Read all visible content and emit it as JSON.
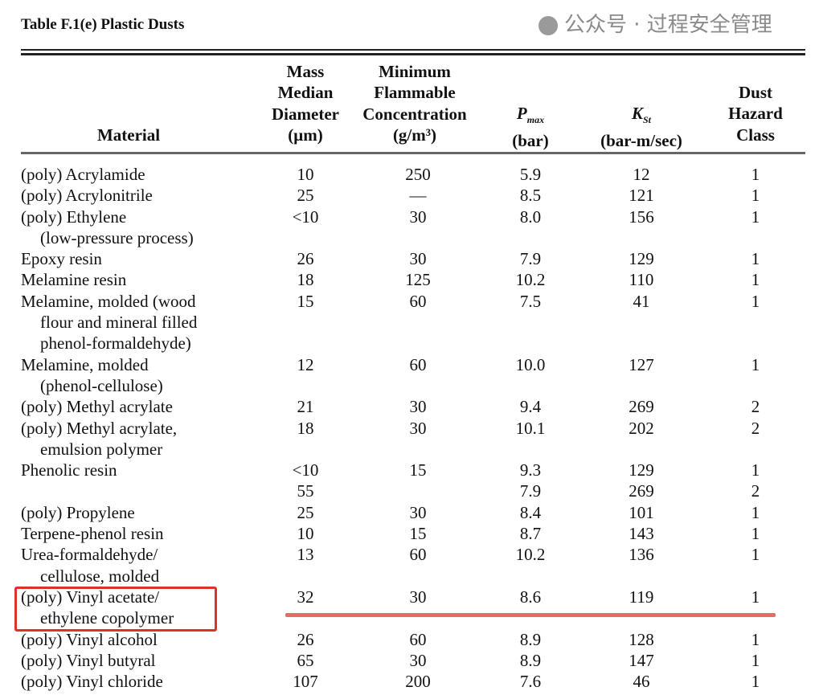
{
  "title": "Table F.1(e)  Plastic Dusts",
  "headers": {
    "material": "Material",
    "mass": [
      "Mass",
      "Median",
      "Diameter",
      "(μm)"
    ],
    "mfc": [
      "Minimum",
      "Flammable",
      "Concentration",
      "(g/m³)"
    ],
    "pmax_main": "P",
    "pmax_sub": "max",
    "pmax_unit": "(bar)",
    "kst_main": "K",
    "kst_sub": "St",
    "kst_unit": "(bar-m/sec)",
    "class": [
      "Dust",
      "Hazard",
      "Class"
    ]
  },
  "rows": [
    {
      "material": [
        "(poly) Acrylamide"
      ],
      "mmd": "10",
      "mfc": "250",
      "pmax": "5.9",
      "kst": "12",
      "class": "1"
    },
    {
      "material": [
        "(poly) Acrylonitrile"
      ],
      "mmd": "25",
      "mfc": "—",
      "pmax": "8.5",
      "kst": "121",
      "class": "1"
    },
    {
      "material": [
        "(poly) Ethylene",
        "(low-pressure process)"
      ],
      "mmd": "<10",
      "mfc": "30",
      "pmax": "8.0",
      "kst": "156",
      "class": "1"
    },
    {
      "material": [
        "Epoxy resin"
      ],
      "mmd": "26",
      "mfc": "30",
      "pmax": "7.9",
      "kst": "129",
      "class": "1"
    },
    {
      "material": [
        "Melamine resin"
      ],
      "mmd": "18",
      "mfc": "125",
      "pmax": "10.2",
      "kst": "110",
      "class": "1"
    },
    {
      "material": [
        "Melamine, molded (wood",
        "flour and mineral filled",
        "phenol-formaldehyde)"
      ],
      "mmd": "15",
      "mfc": "60",
      "pmax": "7.5",
      "kst": "41",
      "class": "1"
    },
    {
      "material": [
        "Melamine, molded",
        "(phenol-cellulose)"
      ],
      "mmd": "12",
      "mfc": "60",
      "pmax": "10.0",
      "kst": "127",
      "class": "1"
    },
    {
      "material": [
        "(poly) Methyl acrylate"
      ],
      "mmd": "21",
      "mfc": "30",
      "pmax": "9.4",
      "kst": "269",
      "class": "2"
    },
    {
      "material": [
        "(poly) Methyl acrylate,",
        "emulsion polymer"
      ],
      "mmd": "18",
      "mfc": "30",
      "pmax": "10.1",
      "kst": "202",
      "class": "2"
    },
    {
      "material": [
        "Phenolic resin"
      ],
      "mmd": "<10",
      "mfc": "15",
      "pmax": "9.3",
      "kst": "129",
      "class": "1"
    },
    {
      "material": [
        ""
      ],
      "mmd": "55",
      "mfc": "",
      "pmax": "7.9",
      "kst": "269",
      "class": "2"
    },
    {
      "material": [
        "(poly) Propylene"
      ],
      "mmd": "25",
      "mfc": "30",
      "pmax": "8.4",
      "kst": "101",
      "class": "1"
    },
    {
      "material": [
        "Terpene-phenol resin"
      ],
      "mmd": "10",
      "mfc": "15",
      "pmax": "8.7",
      "kst": "143",
      "class": "1"
    },
    {
      "material": [
        "Urea-formaldehyde/",
        "cellulose, molded"
      ],
      "mmd": "13",
      "mfc": "60",
      "pmax": "10.2",
      "kst": "136",
      "class": "1"
    },
    {
      "material": [
        "(poly) Vinyl acetate/",
        "ethylene copolymer"
      ],
      "mmd": "32",
      "mfc": "30",
      "pmax": "8.6",
      "kst": "119",
      "class": "1"
    },
    {
      "material": [
        "(poly) Vinyl alcohol"
      ],
      "mmd": "26",
      "mfc": "60",
      "pmax": "8.9",
      "kst": "128",
      "class": "1"
    },
    {
      "material": [
        "(poly) Vinyl butyral"
      ],
      "mmd": "65",
      "mfc": "30",
      "pmax": "8.9",
      "kst": "147",
      "class": "1"
    },
    {
      "material": [
        "(poly) Vinyl chloride"
      ],
      "mmd": "107",
      "mfc": "200",
      "pmax": "7.6",
      "kst": "46",
      "class": "1"
    }
  ],
  "annotation_color": "#d9332b",
  "watermark": "公众号 · 过程安全管理"
}
